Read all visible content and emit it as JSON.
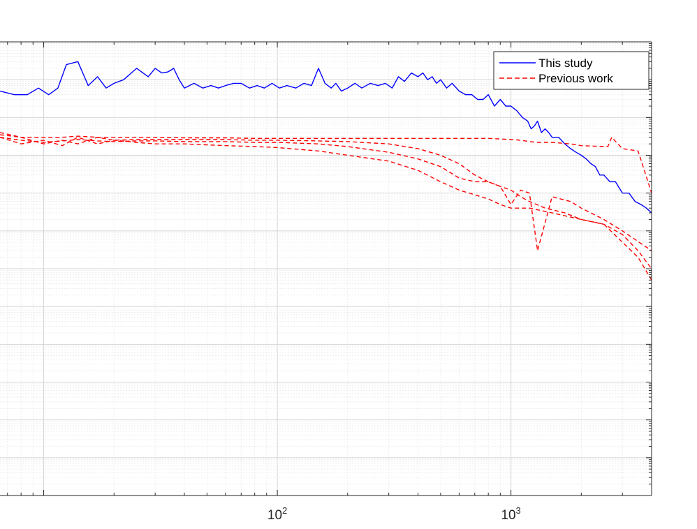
{
  "chart_data": {
    "type": "line",
    "title": "",
    "xlabel": "",
    "ylabel": "",
    "x_scale": "log",
    "y_scale": "log",
    "xlim": [
      6.5,
      4000
    ],
    "ylim": [
      1,
      1000000000000
    ],
    "grid": true,
    "minor_grid": true,
    "legend_position": "top-right",
    "x_tick_values": [
      100,
      1000
    ],
    "x_tick_labels": [
      {
        "base": "10",
        "exp": "2"
      },
      {
        "base": "10",
        "exp": "3"
      }
    ],
    "series": [
      {
        "name": "This study",
        "color": "#0000ff",
        "style": "solid",
        "x": [
          6.5,
          7.5,
          8.5,
          9.5,
          10.5,
          11.5,
          12.5,
          14,
          15.5,
          17,
          18.5,
          20,
          22,
          25,
          28,
          30,
          32,
          34,
          36,
          38,
          40,
          44,
          48,
          52,
          56,
          60,
          65,
          70,
          76,
          82,
          88,
          95,
          102,
          110,
          120,
          130,
          140,
          150,
          160,
          170,
          178,
          188,
          200,
          215,
          230,
          250,
          270,
          290,
          310,
          330,
          350,
          375,
          400,
          420,
          440,
          460,
          480,
          500,
          530,
          560,
          600,
          640,
          680,
          720,
          760,
          800,
          850,
          900,
          950,
          1000,
          1060,
          1120,
          1180,
          1220,
          1260,
          1300,
          1350,
          1400,
          1450,
          1500,
          1600,
          1700,
          1800,
          1900,
          2000,
          2100,
          2200,
          2300,
          2400,
          2500,
          2650,
          2800,
          3000,
          3200,
          3400,
          3600,
          3800,
          4000
        ],
        "y": [
          50000000000,
          40000000000,
          40000000000,
          60000000000,
          40000000000,
          60000000000,
          250000000000,
          300000000000,
          70000000000,
          120000000000,
          60000000000,
          80000000000,
          100000000000,
          200000000000,
          120000000000,
          200000000000,
          150000000000,
          160000000000,
          200000000000,
          100000000000,
          60000000000,
          80000000000,
          60000000000,
          70000000000,
          60000000000,
          70000000000,
          80000000000,
          80000000000,
          60000000000,
          70000000000,
          60000000000,
          80000000000,
          60000000000,
          70000000000,
          60000000000,
          80000000000,
          70000000000,
          200000000000,
          80000000000,
          60000000000,
          80000000000,
          50000000000,
          60000000000,
          80000000000,
          60000000000,
          80000000000,
          70000000000,
          80000000000,
          60000000000,
          120000000000,
          90000000000,
          150000000000,
          120000000000,
          150000000000,
          100000000000,
          120000000000,
          80000000000,
          100000000000,
          60000000000,
          80000000000,
          50000000000,
          40000000000,
          40000000000,
          30000000000,
          30000000000,
          40000000000,
          20000000000,
          30000000000,
          20000000000,
          20000000000,
          15000000000,
          10000000000,
          8000000000,
          5000000000,
          6000000000,
          8000000000,
          4000000000,
          5000000000,
          4000000000,
          3000000000,
          3000000000,
          2000000000,
          1500000000,
          1200000000,
          1000000000,
          800000000,
          600000000,
          500000000,
          300000000,
          300000000,
          200000000,
          200000000,
          100000000,
          100000000,
          60000000,
          50000000,
          40000000,
          30000000
        ]
      },
      {
        "name": "Previous work",
        "color": "#ff0000",
        "style": "dashed",
        "x": [
          6.5,
          8,
          10,
          12,
          14,
          17,
          20,
          25,
          30,
          40,
          60,
          80,
          100,
          150,
          200,
          300,
          400,
          500,
          600,
          700,
          800,
          900,
          1000,
          1200,
          1500,
          2000,
          2500,
          3000,
          3500,
          4000
        ],
        "y": [
          3000000000,
          2000000000,
          2500000000,
          1800000000,
          3000000000,
          2000000000,
          2500000000,
          2200000000,
          2000000000,
          2000000000,
          1800000000,
          1700000000,
          1600000000,
          1300000000,
          1000000000,
          700000000,
          400000000,
          200000000,
          120000000,
          90000000,
          70000000,
          50000000,
          40000000,
          40000000,
          30000000,
          20000000,
          15000000,
          5000000,
          2000000,
          500000
        ]
      },
      {
        "name": "",
        "color": "#ff0000",
        "style": "dashed",
        "x": [
          6.5,
          8,
          10,
          12,
          14,
          17,
          20,
          25,
          30,
          40,
          60,
          80,
          100,
          150,
          200,
          300,
          400,
          500,
          600,
          700,
          800,
          900,
          1000,
          1100,
          1200,
          1400,
          1700,
          2000,
          2500,
          3000,
          3500,
          4000
        ],
        "y": [
          3500000000,
          3000000000,
          2000000000,
          2500000000,
          2000000000,
          3000000000,
          2500000000,
          2600000000,
          2600000000,
          2600000000,
          2600000000,
          2500000000,
          2500000000,
          2400000000,
          2300000000,
          2000000000,
          1500000000,
          1000000000,
          600000000,
          300000000,
          200000000,
          150000000,
          120000000,
          80000000,
          60000000,
          40000000,
          30000000,
          20000000,
          15000000,
          8000000,
          3000000,
          1000000
        ]
      },
      {
        "name": "",
        "color": "#ff0000",
        "style": "dashed",
        "x": [
          6.5,
          8,
          10,
          12,
          14,
          17,
          20,
          25,
          30,
          40,
          60,
          80,
          100,
          150,
          200,
          300,
          400,
          500,
          600,
          700,
          800,
          900,
          1000,
          1100,
          1200,
          1300,
          1500,
          1800,
          2000,
          2500,
          3000,
          4000
        ],
        "y": [
          3000000000,
          2500000000,
          2200000000,
          2400000000,
          2600000000,
          2400000000,
          2300000000,
          2400000000,
          2400000000,
          2300000000,
          2300000000,
          2200000000,
          2200000000,
          2000000000,
          1700000000,
          1200000000,
          800000000,
          500000000,
          250000000,
          200000000,
          200000000,
          150000000,
          50000000,
          120000000,
          100000000,
          3000000,
          80000000,
          60000000,
          40000000,
          20000000,
          10000000,
          3000000
        ]
      },
      {
        "name": "",
        "color": "#ff0000",
        "style": "dashed",
        "x": [
          6.5,
          8,
          10,
          12,
          14,
          17,
          20,
          25,
          30,
          40,
          60,
          80,
          100,
          150,
          200,
          300,
          400,
          500,
          600,
          700,
          800,
          900,
          1000,
          1100,
          1200,
          1300,
          1500,
          1800,
          2000,
          2500,
          2600,
          2700,
          3000,
          3500,
          4000
        ],
        "y": [
          4000000000,
          3000000000,
          3000000000,
          3000000000,
          3200000000,
          3000000000,
          3000000000,
          3000000000,
          3000000000,
          2900000000,
          2900000000,
          2800000000,
          2800000000,
          2800000000,
          2800000000,
          2800000000,
          2800000000,
          2800000000,
          2800000000,
          2800000000,
          2800000000,
          2700000000,
          2600000000,
          2500000000,
          2300000000,
          2200000000,
          2200000000,
          2000000000,
          1800000000,
          1700000000,
          1700000000,
          3000000000,
          1500000000,
          1300000000,
          100000000
        ]
      }
    ]
  },
  "legend": {
    "items": [
      {
        "label": "This study",
        "color": "#0000ff",
        "style": "solid"
      },
      {
        "label": "Previous work",
        "color": "#ff0000",
        "style": "dashed"
      }
    ]
  }
}
